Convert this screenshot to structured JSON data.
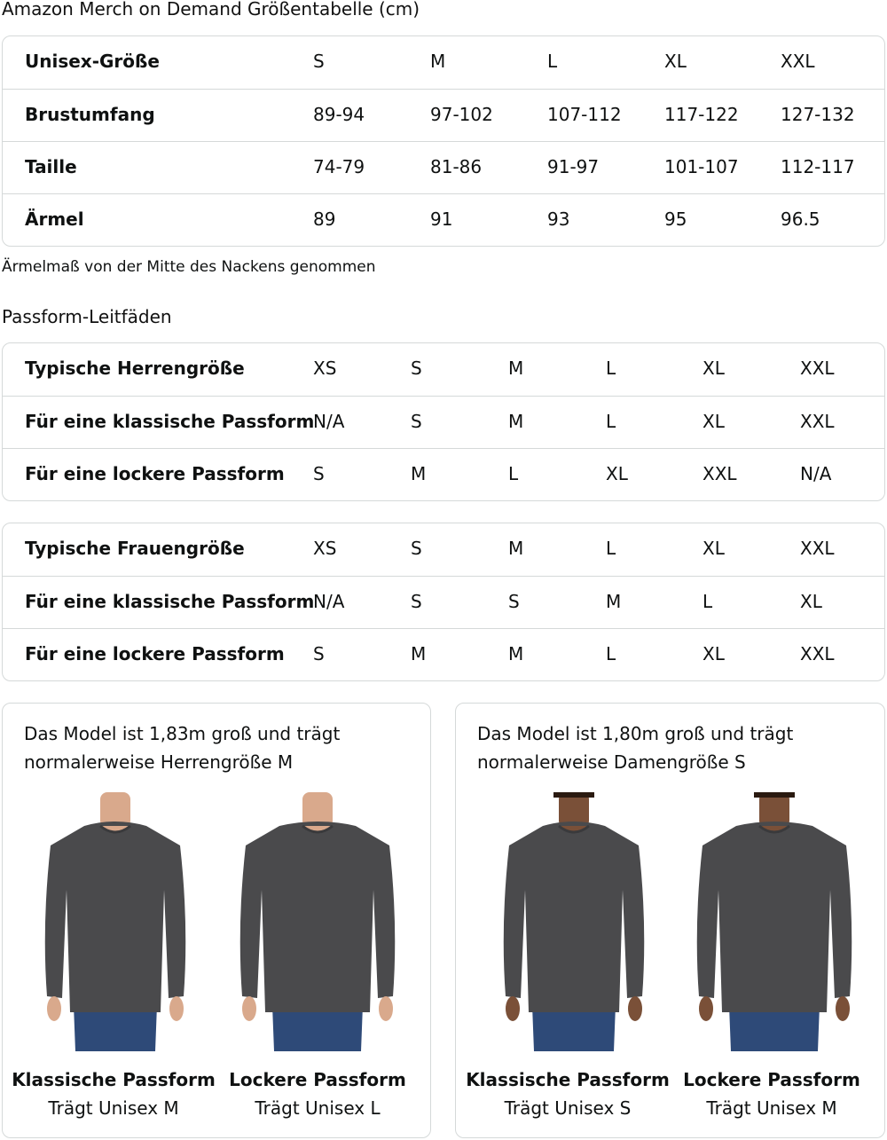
{
  "title": "Amazon Merch on Demand Größentabelle (cm)",
  "size_table": {
    "rows": [
      {
        "label": "Unisex-Größe",
        "values": [
          "S",
          "M",
          "L",
          "XL",
          "XXL"
        ]
      },
      {
        "label": "Brustumfang",
        "values": [
          "89-94",
          "97-102",
          "107-112",
          "117-122",
          "127-132"
        ]
      },
      {
        "label": "Taille",
        "values": [
          "74-79",
          "81-86",
          "91-97",
          "101-107",
          "112-117"
        ]
      },
      {
        "label": "Ärmel",
        "values": [
          "89",
          "91",
          "93",
          "95",
          "96.5"
        ]
      }
    ]
  },
  "note": "Ärmelmaß von der Mitte des Nackens genommen",
  "fit_heading": "Passform-Leitfäden",
  "men_table": {
    "rows": [
      {
        "label": "Typische Herrengröße",
        "values": [
          "XS",
          "S",
          "M",
          "L",
          "XL",
          "XXL"
        ]
      },
      {
        "label": "Für eine klassische Passform",
        "values": [
          "N/A",
          "S",
          "M",
          "L",
          "XL",
          "XXL"
        ]
      },
      {
        "label": "Für eine lockere Passform",
        "values": [
          "S",
          "M",
          "L",
          "XL",
          "XXL",
          "N/A"
        ]
      }
    ]
  },
  "women_table": {
    "rows": [
      {
        "label": "Typische Frauengröße",
        "values": [
          "XS",
          "S",
          "M",
          "L",
          "XL",
          "XXL"
        ]
      },
      {
        "label": "Für eine klassische Passform",
        "values": [
          "N/A",
          "S",
          "S",
          "M",
          "L",
          "XL"
        ]
      },
      {
        "label": "Für eine lockere Passform",
        "values": [
          "S",
          "M",
          "M",
          "L",
          "XL",
          "XXL"
        ]
      }
    ]
  },
  "cards": [
    {
      "description": "Das Model ist 1,83m groß und trägt normalerweise Herrengröße M",
      "figures": [
        {
          "fit": "Klassische Passform",
          "wears": "Trägt Unisex M"
        },
        {
          "fit": "Lockere Passform",
          "wears": "Trägt Unisex L"
        }
      ]
    },
    {
      "description": "Das Model ist 1,80m groß und trägt normalerweise Damengröße S",
      "figures": [
        {
          "fit": "Klassische Passform",
          "wears": "Trägt Unisex S"
        },
        {
          "fit": "Lockere Passform",
          "wears": "Trägt Unisex M"
        }
      ]
    }
  ],
  "colors": {
    "sweater": "#4a4a4c",
    "jeans": "#2e4a78",
    "border": "#d5d9d9"
  }
}
